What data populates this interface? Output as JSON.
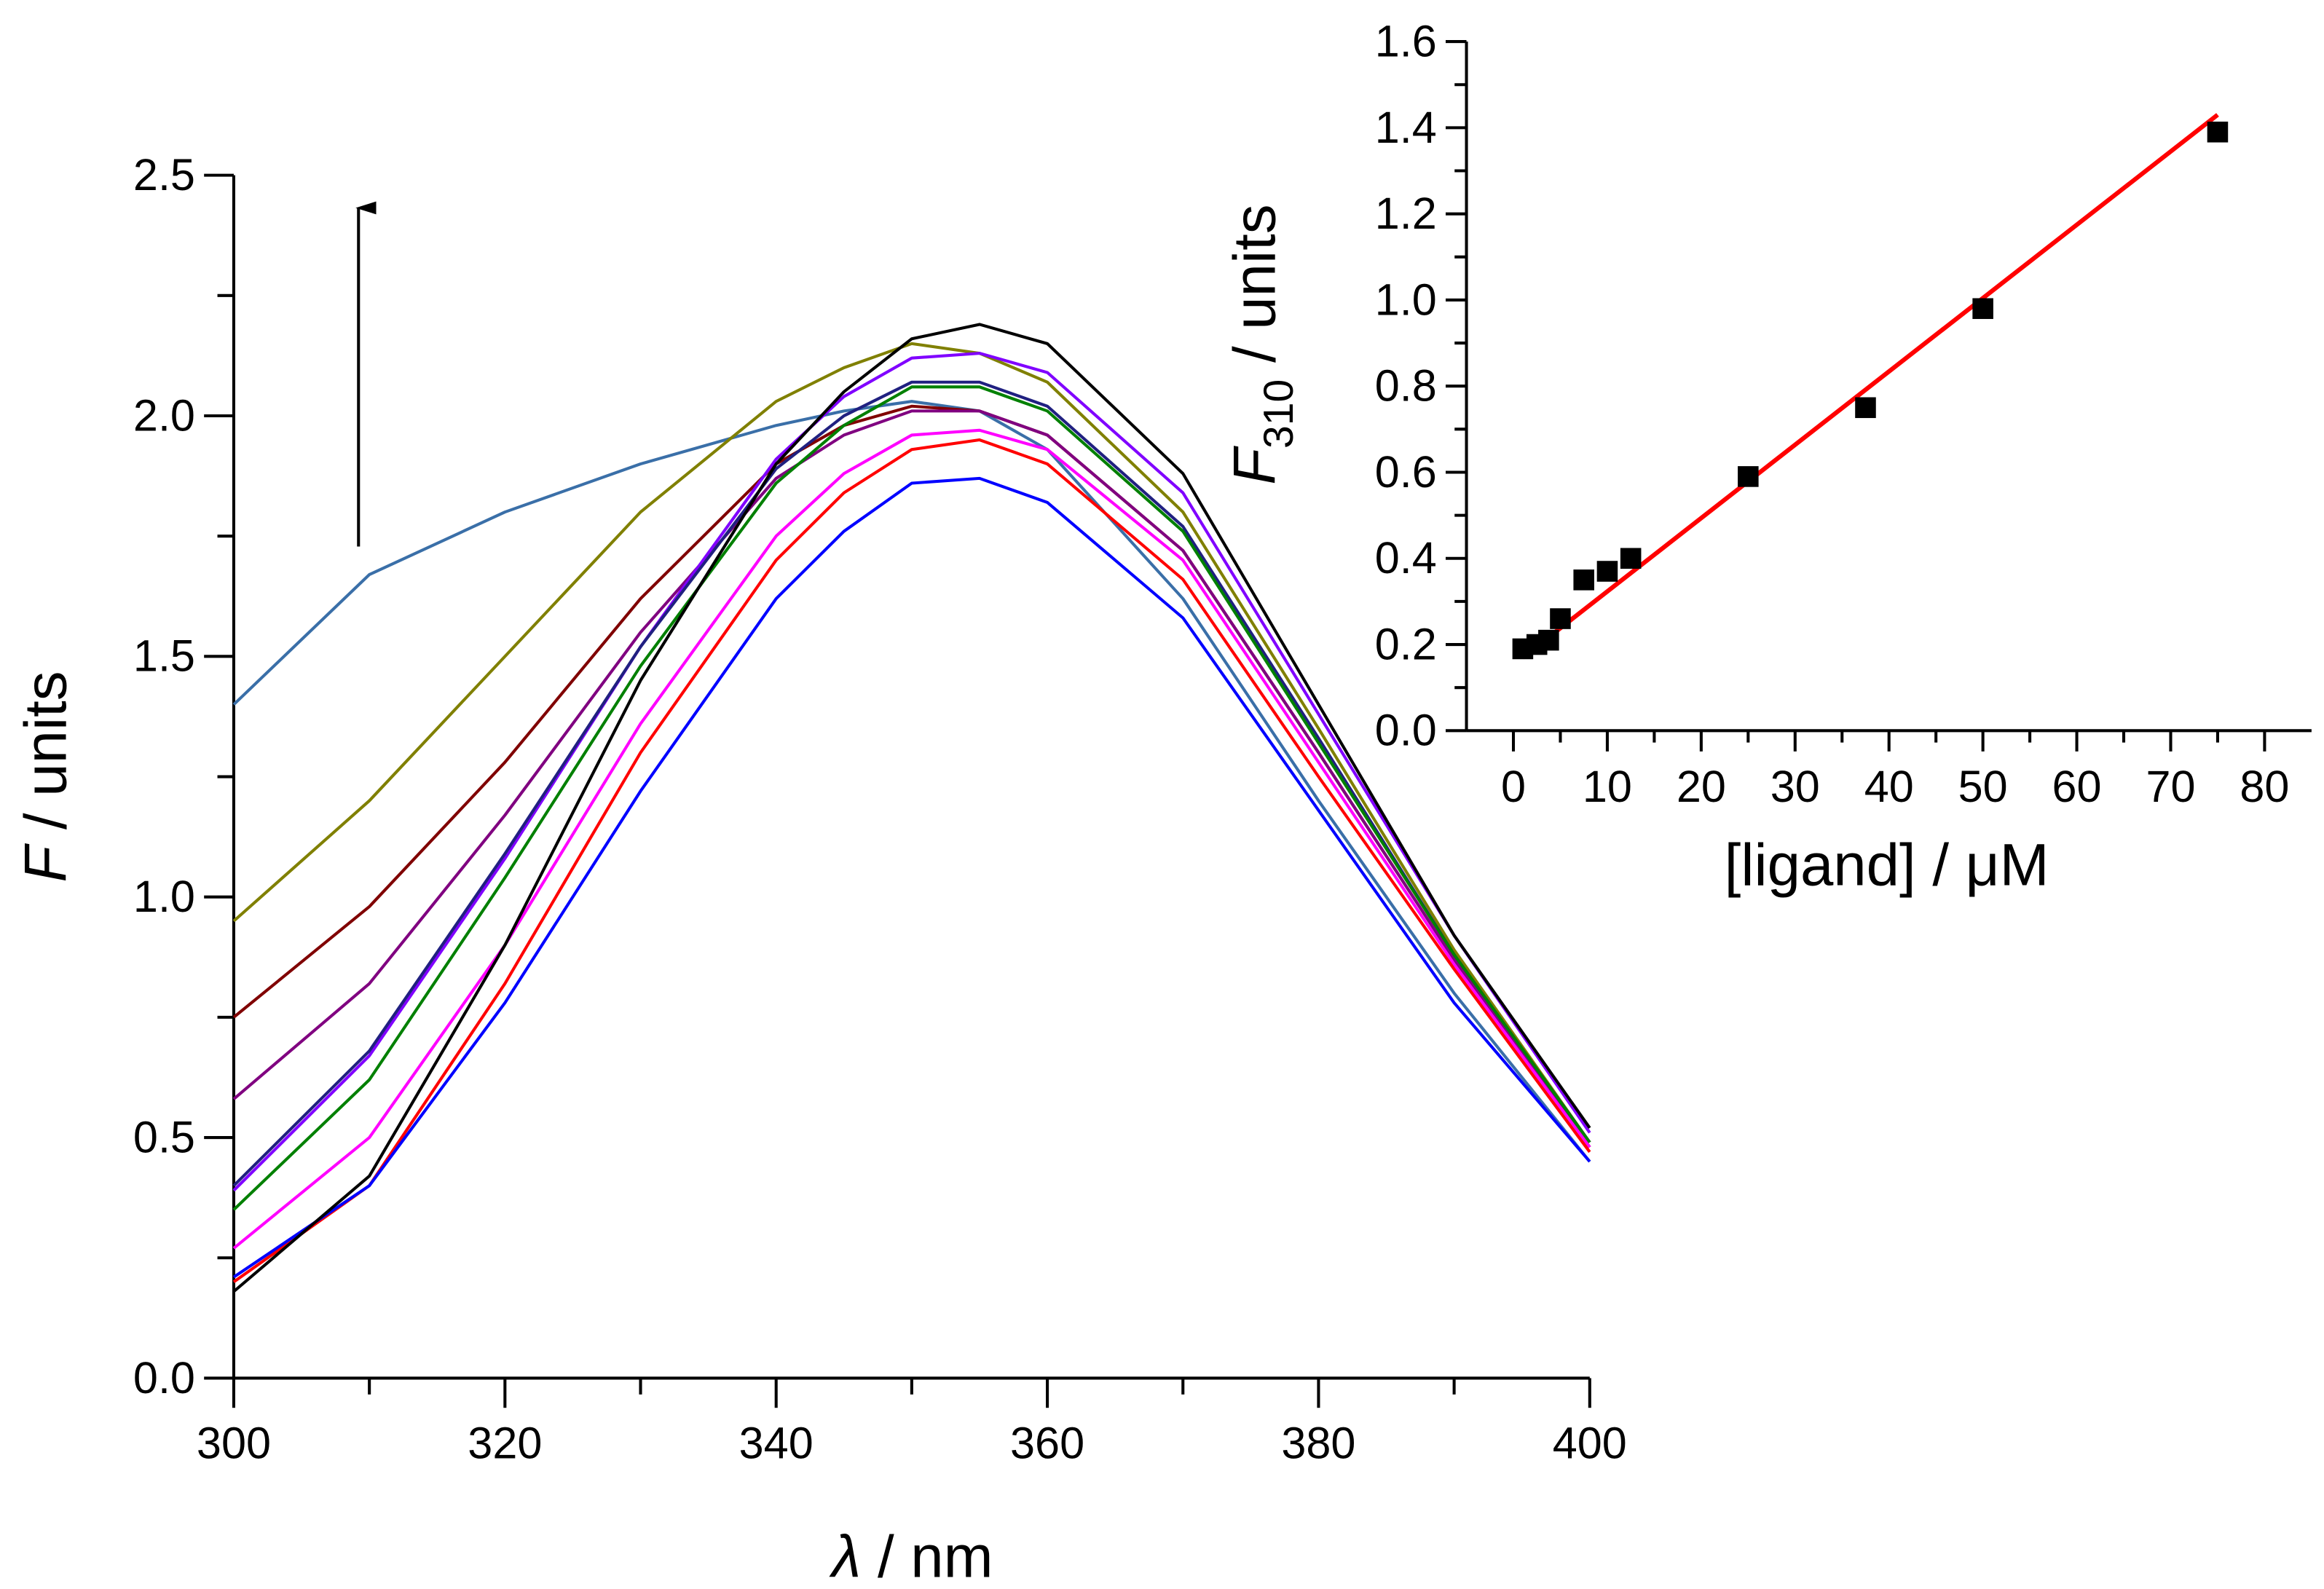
{
  "chart_data": [
    {
      "type": "line",
      "xlabel_symbol": "λ",
      "xlabel_text": " / nm",
      "ylabel_symbol": "F",
      "ylabel_text": " / units",
      "x": [
        300,
        310,
        320,
        330,
        340,
        345,
        350,
        355,
        360,
        370,
        380,
        390,
        400
      ],
      "xlim": [
        300,
        400
      ],
      "xticks": [
        300,
        320,
        340,
        360,
        380,
        400
      ],
      "xminorticks": [
        310,
        330,
        350,
        370,
        390
      ],
      "ylim": [
        0,
        2.5
      ],
      "yticks": [
        {
          "value": 0,
          "label": "0.0"
        },
        0.5,
        {
          "value": 1,
          "label": "1.0"
        },
        1.5,
        {
          "value": 2,
          "label": "2.0"
        },
        2.5
      ],
      "yminorticks": [
        0.25,
        0.75,
        1.25,
        1.75,
        2.25
      ],
      "series": [
        {
          "color": "#3a6fa8",
          "values": [
            1.4,
            1.67,
            1.8,
            1.9,
            1.98,
            2.01,
            2.03,
            2.01,
            1.93,
            1.62,
            1.2,
            0.8,
            0.45
          ]
        },
        {
          "color": "#808000",
          "values": [
            0.95,
            1.2,
            1.5,
            1.8,
            2.03,
            2.1,
            2.15,
            2.13,
            2.07,
            1.8,
            1.35,
            0.89,
            0.49
          ]
        },
        {
          "color": "#800000",
          "values": [
            0.75,
            0.98,
            1.28,
            1.62,
            1.9,
            1.98,
            2.02,
            2.01,
            1.96,
            1.72,
            1.3,
            0.87,
            0.48
          ]
        },
        {
          "color": "#800080",
          "values": [
            0.58,
            0.82,
            1.17,
            1.55,
            1.87,
            1.96,
            2.01,
            2.01,
            1.96,
            1.72,
            1.3,
            0.87,
            0.48
          ]
        },
        {
          "color": "#8000ff",
          "values": [
            0.39,
            0.67,
            1.08,
            1.52,
            1.91,
            2.04,
            2.12,
            2.13,
            2.09,
            1.84,
            1.38,
            0.92,
            0.51
          ]
        },
        {
          "color": "#202080",
          "values": [
            0.4,
            0.68,
            1.09,
            1.52,
            1.89,
            2.0,
            2.07,
            2.07,
            2.02,
            1.77,
            1.33,
            0.88,
            0.49
          ]
        },
        {
          "color": "#008000",
          "values": [
            0.35,
            0.62,
            1.04,
            1.48,
            1.86,
            1.98,
            2.06,
            2.06,
            2.01,
            1.76,
            1.32,
            0.88,
            0.49
          ]
        },
        {
          "color": "#ff00ff",
          "values": [
            0.27,
            0.5,
            0.9,
            1.36,
            1.75,
            1.88,
            1.96,
            1.97,
            1.93,
            1.7,
            1.28,
            0.86,
            0.48
          ]
        },
        {
          "color": "#ff0000",
          "values": [
            0.2,
            0.4,
            0.82,
            1.3,
            1.7,
            1.84,
            1.93,
            1.95,
            1.9,
            1.66,
            1.25,
            0.85,
            0.47
          ]
        },
        {
          "color": "#0000ff",
          "values": [
            0.21,
            0.4,
            0.78,
            1.22,
            1.62,
            1.76,
            1.86,
            1.87,
            1.82,
            1.58,
            1.18,
            0.78,
            0.45
          ]
        },
        {
          "color": "#000000",
          "values": [
            0.18,
            0.42,
            0.9,
            1.45,
            1.9,
            2.05,
            2.16,
            2.19,
            2.15,
            1.88,
            1.4,
            0.92,
            0.52
          ]
        }
      ]
    },
    {
      "type": "scatter",
      "xlabel": "[ligand] / μM",
      "ylabel_symbol": "F",
      "ylabel_sub": "310",
      "ylabel_text": " / units",
      "x": [
        1,
        2.5,
        3.75,
        5,
        7.5,
        10,
        12.5,
        25,
        37.5,
        50,
        75
      ],
      "values": [
        0.19,
        0.2,
        0.21,
        0.26,
        0.35,
        0.37,
        0.4,
        0.59,
        0.75,
        0.98,
        1.39
      ],
      "color": "#000000",
      "fit": {
        "x": [
          1,
          75
        ],
        "values": [
          0.17,
          1.43
        ],
        "color": "#ff0000"
      },
      "xlim": [
        -5,
        85
      ],
      "xticks": [
        0,
        10,
        20,
        30,
        40,
        50,
        60,
        70,
        80
      ],
      "xminorticks": [
        5,
        15,
        25,
        35,
        45,
        55,
        65,
        75
      ],
      "ylim": [
        0,
        1.6
      ],
      "yticks": [
        {
          "value": 0,
          "label": "0.0"
        },
        0.2,
        0.4,
        0.6,
        0.8,
        {
          "value": 1,
          "label": "1.0"
        },
        1.2,
        1.4,
        1.6
      ],
      "yminorticks": [
        0.1,
        0.3,
        0.5,
        0.7,
        0.9,
        1.1,
        1.3,
        1.5
      ]
    }
  ]
}
